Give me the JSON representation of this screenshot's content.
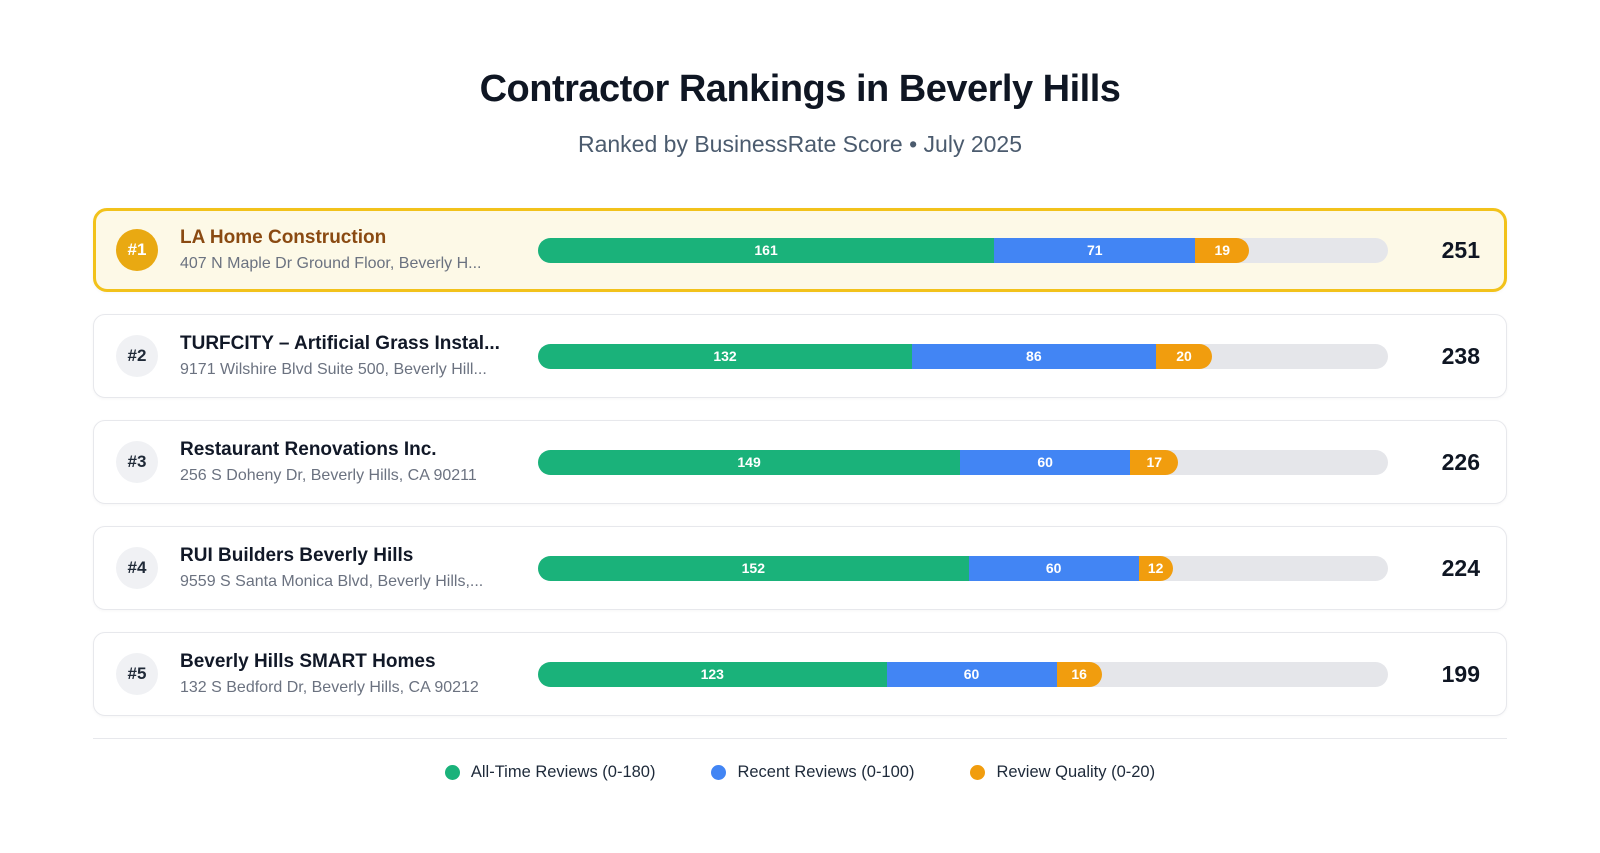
{
  "header": {
    "title": "Contractor Rankings in Beverly Hills",
    "subtitle": "Ranked by BusinessRate Score • July 2025"
  },
  "colors": {
    "all_time": "#1ab27a",
    "recent": "#4285f4",
    "quality": "#f19d0e",
    "highlight_border": "#f2c21b",
    "highlight_bg": "#fdf9e7",
    "badge_gold": "#e9a912",
    "top_name_text": "#8a4a12",
    "track": "#e5e6ea"
  },
  "rankings": {
    "rows": [
      {
        "rank": "#1",
        "name": "LA Home Construction",
        "address": "407 N Maple Dr Ground Floor, Beverly H...",
        "scores": {
          "all_time": 161,
          "recent": 71,
          "quality": 19
        },
        "total": "251",
        "highlighted": true
      },
      {
        "rank": "#2",
        "name": "TURFCITY – Artificial Grass Instal...",
        "address": "9171 Wilshire Blvd Suite 500, Beverly Hill...",
        "scores": {
          "all_time": 132,
          "recent": 86,
          "quality": 20
        },
        "total": "238",
        "highlighted": false
      },
      {
        "rank": "#3",
        "name": "Restaurant Renovations Inc.",
        "address": "256 S Doheny Dr, Beverly Hills, CA 90211",
        "scores": {
          "all_time": 149,
          "recent": 60,
          "quality": 17
        },
        "total": "226",
        "highlighted": false
      },
      {
        "rank": "#4",
        "name": "RUI Builders Beverly Hills",
        "address": "9559 S Santa Monica Blvd, Beverly Hills,...",
        "scores": {
          "all_time": 152,
          "recent": 60,
          "quality": 12
        },
        "total": "224",
        "highlighted": false
      },
      {
        "rank": "#5",
        "name": "Beverly Hills SMART Homes",
        "address": "132 S Bedford Dr, Beverly Hills, CA 90212",
        "scores": {
          "all_time": 123,
          "recent": 60,
          "quality": 16
        },
        "total": "199",
        "highlighted": false
      }
    ]
  },
  "legend": {
    "items": [
      {
        "label": "All-Time Reviews (0-180)",
        "color": "#1ab27a"
      },
      {
        "label": "Recent Reviews (0-100)",
        "color": "#4285f4"
      },
      {
        "label": "Review Quality (0-20)",
        "color": "#f19d0e"
      }
    ]
  },
  "chart_data": {
    "type": "bar",
    "orientation": "horizontal-stacked",
    "title": "Contractor Rankings in Beverly Hills",
    "subtitle": "Ranked by BusinessRate Score • July 2025",
    "categories": [
      "LA Home Construction",
      "TURFCITY – Artificial Grass Instal...",
      "Restaurant Renovations Inc.",
      "RUI Builders Beverly Hills",
      "Beverly Hills SMART Homes"
    ],
    "series": [
      {
        "name": "All-Time Reviews (0-180)",
        "values": [
          161,
          132,
          149,
          152,
          123
        ]
      },
      {
        "name": "Recent Reviews (0-100)",
        "values": [
          71,
          86,
          60,
          60,
          60
        ]
      },
      {
        "name": "Review Quality (0-20)",
        "values": [
          19,
          20,
          17,
          12,
          16
        ]
      }
    ],
    "totals": [
      251,
      238,
      226,
      224,
      199
    ],
    "xlim": [
      0,
      300
    ],
    "legend_position": "bottom",
    "grid": false
  }
}
